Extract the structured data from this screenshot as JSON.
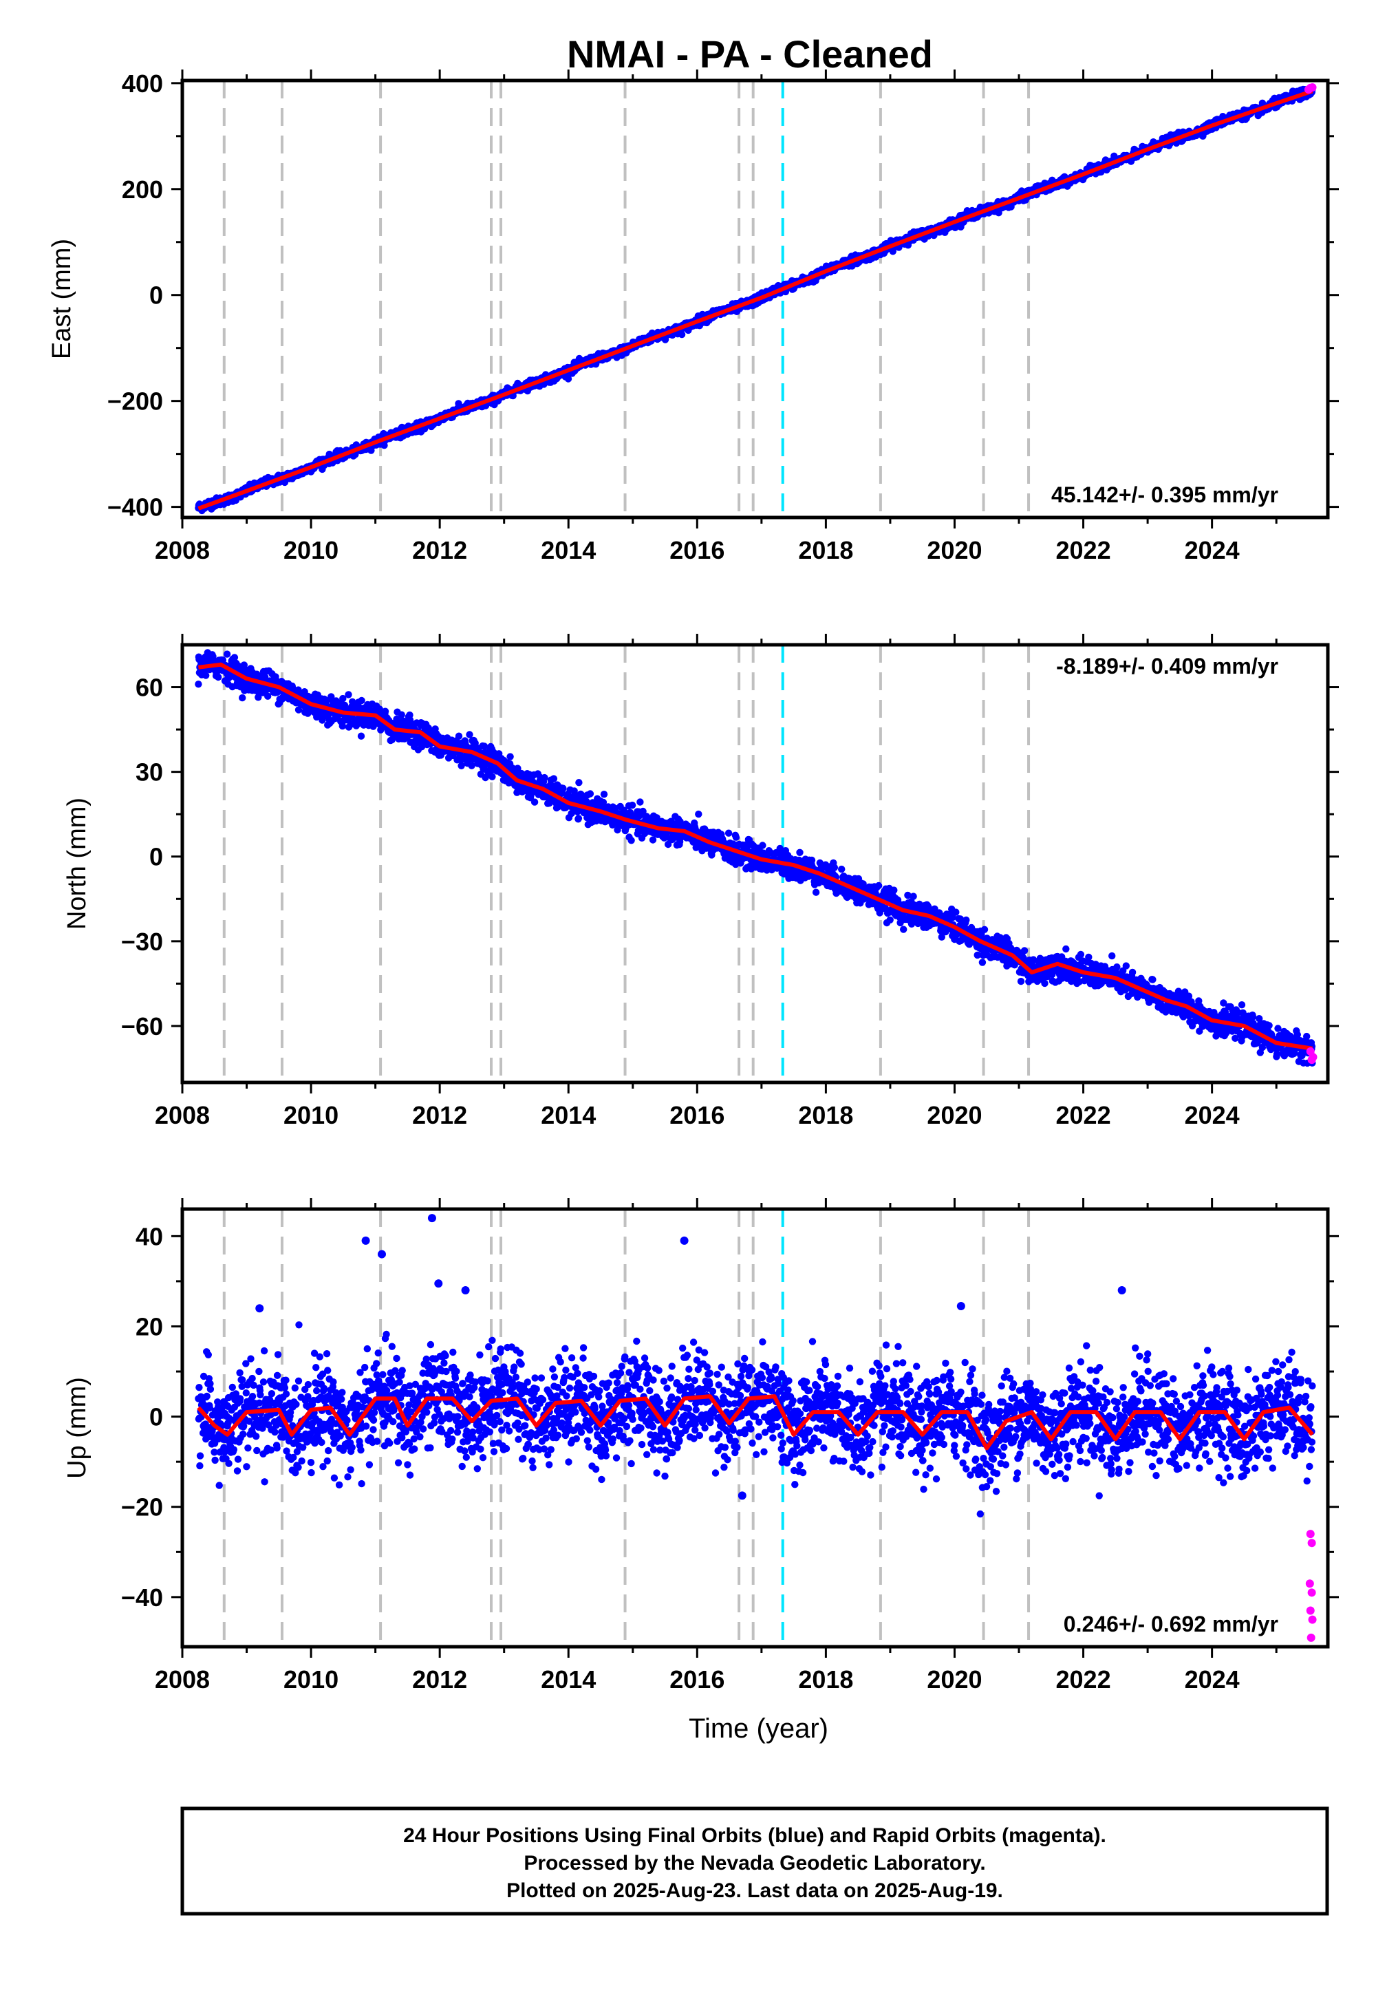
{
  "figure": {
    "title": "NMAI  - PA - Cleaned",
    "footnote": [
      "24 Hour Positions Using Final Orbits (blue) and Rapid Orbits (magenta).",
      "Processed by the Nevada Geodetic Laboratory.",
      "Plotted on 2025-Aug-23. Last data on 2025-Aug-19."
    ]
  },
  "colors": {
    "final": "#0000ff",
    "rapid": "#ff00ff",
    "model": "#ff0000",
    "event": "#c0c0c0",
    "antenna": "#00e5ff"
  },
  "chart_data": [
    {
      "type": "scatter",
      "ylabel": "East (mm)",
      "xlabel": "",
      "xlim": [
        2008.0,
        2025.8
      ],
      "ylim": [
        -420,
        405
      ],
      "xticks": [
        2008,
        2010,
        2012,
        2014,
        2016,
        2018,
        2020,
        2022,
        2024
      ],
      "yticks": [
        -400,
        -200,
        0,
        200,
        400
      ],
      "rate_label": "45.142+/- 0.395 mm/yr",
      "rate_position": "bottom-right",
      "data_range": [
        2008.25,
        2025.56
      ],
      "trend": {
        "start_value": -405,
        "end_value": 385
      },
      "noise_mm": 4,
      "seasonal_mm": 2,
      "model_values": [
        [
          2008.25,
          -403
        ],
        [
          2009.0,
          -370
        ],
        [
          2010.0,
          -325
        ],
        [
          2011.0,
          -278
        ],
        [
          2012.0,
          -233
        ],
        [
          2013.0,
          -188
        ],
        [
          2014.0,
          -142
        ],
        [
          2015.0,
          -96
        ],
        [
          2016.0,
          -50
        ],
        [
          2017.0,
          -5
        ],
        [
          2018.0,
          45
        ],
        [
          2019.0,
          92
        ],
        [
          2020.0,
          138
        ],
        [
          2021.0,
          183
        ],
        [
          2022.0,
          228
        ],
        [
          2023.0,
          275
        ],
        [
          2024.0,
          320
        ],
        [
          2025.0,
          362
        ],
        [
          2025.56,
          385
        ]
      ],
      "rapid_points": [
        [
          2025.5,
          388
        ],
        [
          2025.53,
          391
        ],
        [
          2025.56,
          392
        ]
      ]
    },
    {
      "type": "scatter",
      "ylabel": "North (mm)",
      "xlabel": "",
      "xlim": [
        2008.0,
        2025.8
      ],
      "ylim": [
        -80,
        75
      ],
      "xticks": [
        2008,
        2010,
        2012,
        2014,
        2016,
        2018,
        2020,
        2022,
        2024
      ],
      "yticks": [
        -60,
        -30,
        0,
        30,
        60
      ],
      "rate_label": "-8.189+/- 0.409 mm/yr",
      "rate_position": "top-right",
      "data_range": [
        2008.25,
        2025.56
      ],
      "noise_mm": 2.3,
      "model_values": [
        [
          2008.25,
          67
        ],
        [
          2008.6,
          68
        ],
        [
          2009.0,
          63
        ],
        [
          2009.5,
          60
        ],
        [
          2010.0,
          54
        ],
        [
          2010.5,
          51
        ],
        [
          2011.0,
          50
        ],
        [
          2011.3,
          45
        ],
        [
          2011.7,
          44
        ],
        [
          2012.0,
          39
        ],
        [
          2012.5,
          37
        ],
        [
          2012.9,
          33
        ],
        [
          2013.2,
          27
        ],
        [
          2013.6,
          24
        ],
        [
          2014.0,
          19
        ],
        [
          2014.5,
          16
        ],
        [
          2014.9,
          13
        ],
        [
          2015.4,
          10
        ],
        [
          2015.8,
          9
        ],
        [
          2016.2,
          5
        ],
        [
          2016.6,
          2
        ],
        [
          2017.0,
          -1
        ],
        [
          2017.5,
          -3
        ],
        [
          2017.9,
          -6
        ],
        [
          2018.3,
          -10
        ],
        [
          2018.8,
          -15
        ],
        [
          2019.2,
          -19
        ],
        [
          2019.6,
          -21
        ],
        [
          2020.0,
          -25
        ],
        [
          2020.4,
          -30
        ],
        [
          2020.9,
          -35
        ],
        [
          2021.2,
          -41
        ],
        [
          2021.6,
          -38
        ],
        [
          2022.0,
          -41
        ],
        [
          2022.5,
          -43
        ],
        [
          2022.9,
          -47
        ],
        [
          2023.3,
          -51
        ],
        [
          2023.6,
          -53
        ],
        [
          2024.0,
          -58
        ],
        [
          2024.5,
          -60
        ],
        [
          2025.0,
          -66
        ],
        [
          2025.56,
          -68
        ]
      ],
      "rapid_points": [
        [
          2025.53,
          -69
        ],
        [
          2025.55,
          -72
        ],
        [
          2025.57,
          -71
        ]
      ]
    },
    {
      "type": "scatter",
      "ylabel": "Up (mm)",
      "xlabel": "Time (year)",
      "xlim": [
        2008.0,
        2025.8
      ],
      "ylim": [
        -51,
        46
      ],
      "xticks": [
        2008,
        2010,
        2012,
        2014,
        2016,
        2018,
        2020,
        2022,
        2024
      ],
      "yticks": [
        -40,
        -20,
        0,
        20,
        40
      ],
      "rate_label": "0.246+/- 0.692 mm/yr",
      "rate_position": "bottom-right",
      "data_range": [
        2008.25,
        2025.56
      ],
      "noise_mm": 5.2,
      "seasonal_mm": 3.5,
      "outliers": [
        [
          2010.85,
          39
        ],
        [
          2011.88,
          44
        ],
        [
          2015.8,
          39
        ],
        [
          2011.98,
          29.5
        ],
        [
          2016.7,
          -17.5
        ],
        [
          2022.6,
          28
        ],
        [
          2011.1,
          36
        ],
        [
          2009.2,
          24
        ],
        [
          2020.1,
          24.5
        ],
        [
          2012.4,
          28
        ]
      ],
      "model_values": [
        [
          2008.25,
          2
        ],
        [
          2008.5,
          -2
        ],
        [
          2008.7,
          -4
        ],
        [
          2009.0,
          1
        ],
        [
          2009.5,
          1.5
        ],
        [
          2009.7,
          -4
        ],
        [
          2010.0,
          1.5
        ],
        [
          2010.3,
          2
        ],
        [
          2010.6,
          -4
        ],
        [
          2011.0,
          4
        ],
        [
          2011.3,
          4
        ],
        [
          2011.5,
          -2
        ],
        [
          2011.8,
          4
        ],
        [
          2012.2,
          4
        ],
        [
          2012.5,
          -1
        ],
        [
          2012.8,
          3.5
        ],
        [
          2013.2,
          4
        ],
        [
          2013.5,
          -2
        ],
        [
          2013.8,
          3
        ],
        [
          2014.2,
          3.5
        ],
        [
          2014.5,
          -2
        ],
        [
          2014.8,
          3.5
        ],
        [
          2015.2,
          4
        ],
        [
          2015.5,
          -2
        ],
        [
          2015.8,
          4
        ],
        [
          2016.2,
          4.5
        ],
        [
          2016.5,
          -1.5
        ],
        [
          2016.8,
          4
        ],
        [
          2017.2,
          4.5
        ],
        [
          2017.5,
          -4
        ],
        [
          2017.8,
          1
        ],
        [
          2018.2,
          1
        ],
        [
          2018.5,
          -4
        ],
        [
          2018.8,
          1
        ],
        [
          2019.2,
          1
        ],
        [
          2019.5,
          -4
        ],
        [
          2019.8,
          1
        ],
        [
          2020.2,
          1
        ],
        [
          2020.5,
          -7
        ],
        [
          2020.8,
          -1
        ],
        [
          2021.2,
          1
        ],
        [
          2021.5,
          -5
        ],
        [
          2021.8,
          1
        ],
        [
          2022.2,
          1
        ],
        [
          2022.5,
          -5
        ],
        [
          2022.8,
          1
        ],
        [
          2023.2,
          1
        ],
        [
          2023.5,
          -5
        ],
        [
          2023.8,
          1
        ],
        [
          2024.2,
          1
        ],
        [
          2024.5,
          -5
        ],
        [
          2024.8,
          1
        ],
        [
          2025.2,
          2
        ],
        [
          2025.56,
          -4
        ]
      ],
      "rapid_points": [
        [
          2025.53,
          -26
        ],
        [
          2025.55,
          -28
        ],
        [
          2025.52,
          -37
        ],
        [
          2025.55,
          -39
        ],
        [
          2025.53,
          -43
        ],
        [
          2025.56,
          -45
        ],
        [
          2025.54,
          -49
        ]
      ]
    }
  ],
  "events": {
    "gray_dashed": [
      2008.65,
      2009.55,
      2011.08,
      2012.8,
      2012.95,
      2014.88,
      2016.65,
      2016.87,
      2018.85,
      2020.45,
      2021.15
    ],
    "cyan_dashed": [
      2017.33
    ]
  }
}
